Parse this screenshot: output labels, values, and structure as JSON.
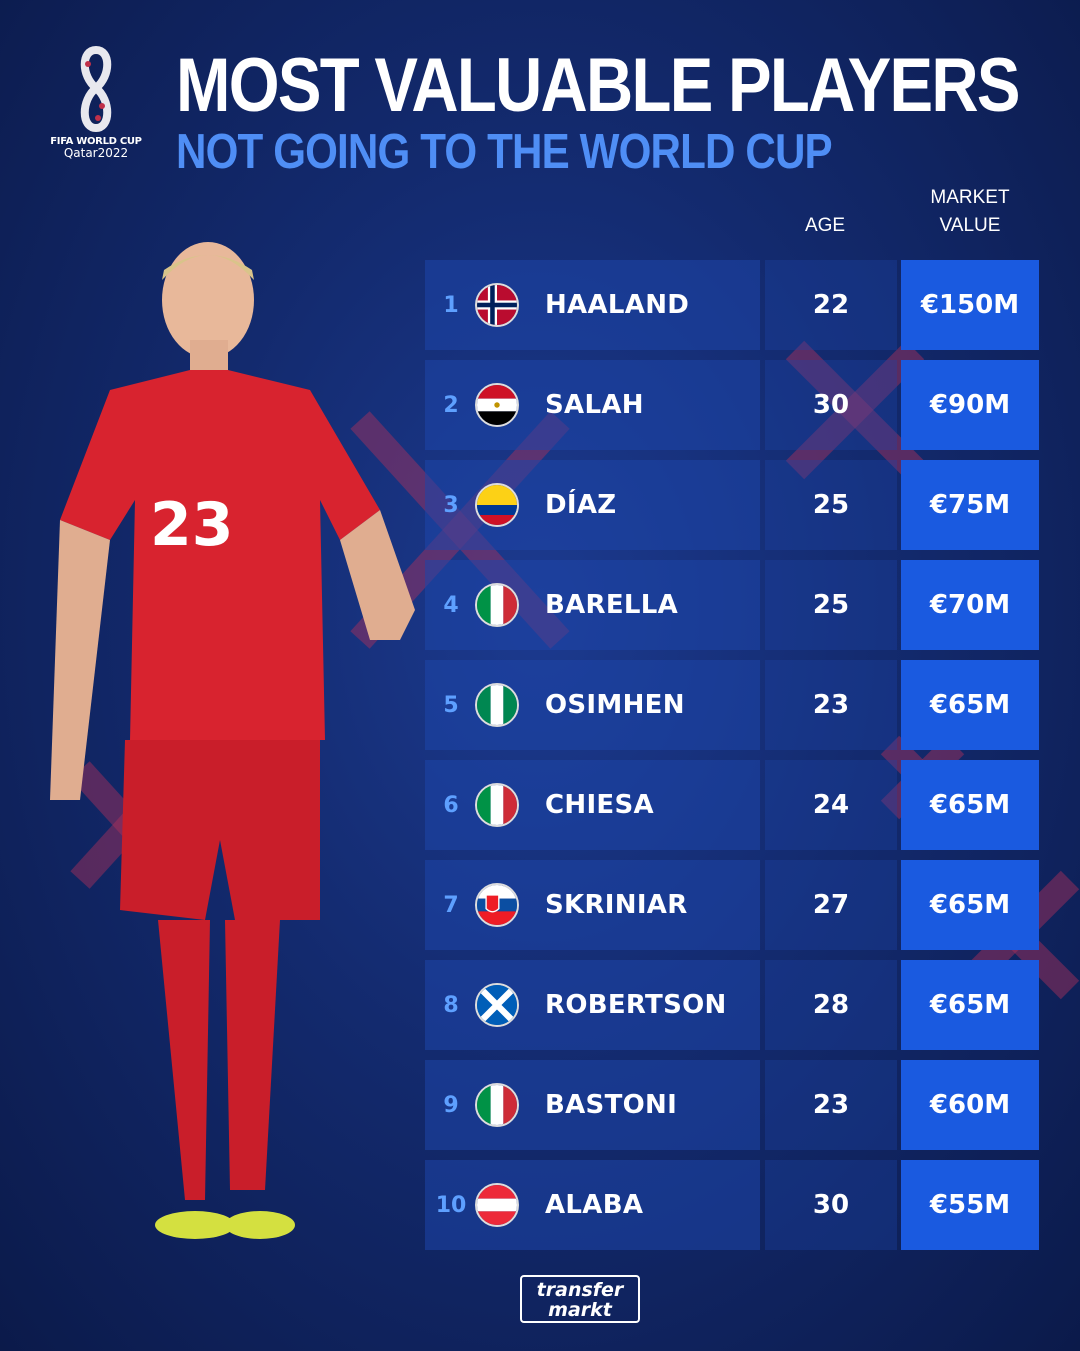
{
  "logo": {
    "line1": "FIFA WORLD CUP",
    "line2": "Qatar2022"
  },
  "title": "MOST VALUABLE PLAYERS",
  "subtitle": "NOT GOING TO THE WORLD CUP",
  "columns": {
    "age": "AGE",
    "market_value_1": "MARKET",
    "market_value_2": "VALUE"
  },
  "colors": {
    "accent": "#1a5ae0",
    "rank": "#5ea0ff",
    "subtitle": "#4f8ef5"
  },
  "player_shirt_number": "23",
  "rows": [
    {
      "rank": "1",
      "flag": "norway",
      "name": "HAALAND",
      "age": "22",
      "value": "€150M"
    },
    {
      "rank": "2",
      "flag": "egypt",
      "name": "SALAH",
      "age": "30",
      "value": "€90M"
    },
    {
      "rank": "3",
      "flag": "colombia",
      "name": "DÍAZ",
      "age": "25",
      "value": "€75M"
    },
    {
      "rank": "4",
      "flag": "italy",
      "name": "BARELLA",
      "age": "25",
      "value": "€70M"
    },
    {
      "rank": "5",
      "flag": "nigeria",
      "name": "OSIMHEN",
      "age": "23",
      "value": "€65M"
    },
    {
      "rank": "6",
      "flag": "italy",
      "name": "CHIESA",
      "age": "24",
      "value": "€65M"
    },
    {
      "rank": "7",
      "flag": "slovakia",
      "name": "SKRINIAR",
      "age": "27",
      "value": "€65M"
    },
    {
      "rank": "8",
      "flag": "scotland",
      "name": "ROBERTSON",
      "age": "28",
      "value": "€65M"
    },
    {
      "rank": "9",
      "flag": "italy",
      "name": "BASTONI",
      "age": "23",
      "value": "€60M"
    },
    {
      "rank": "10",
      "flag": "austria",
      "name": "ALABA",
      "age": "30",
      "value": "€55M"
    }
  ],
  "footer": {
    "brand_1": "transfer",
    "brand_2": "markt"
  }
}
